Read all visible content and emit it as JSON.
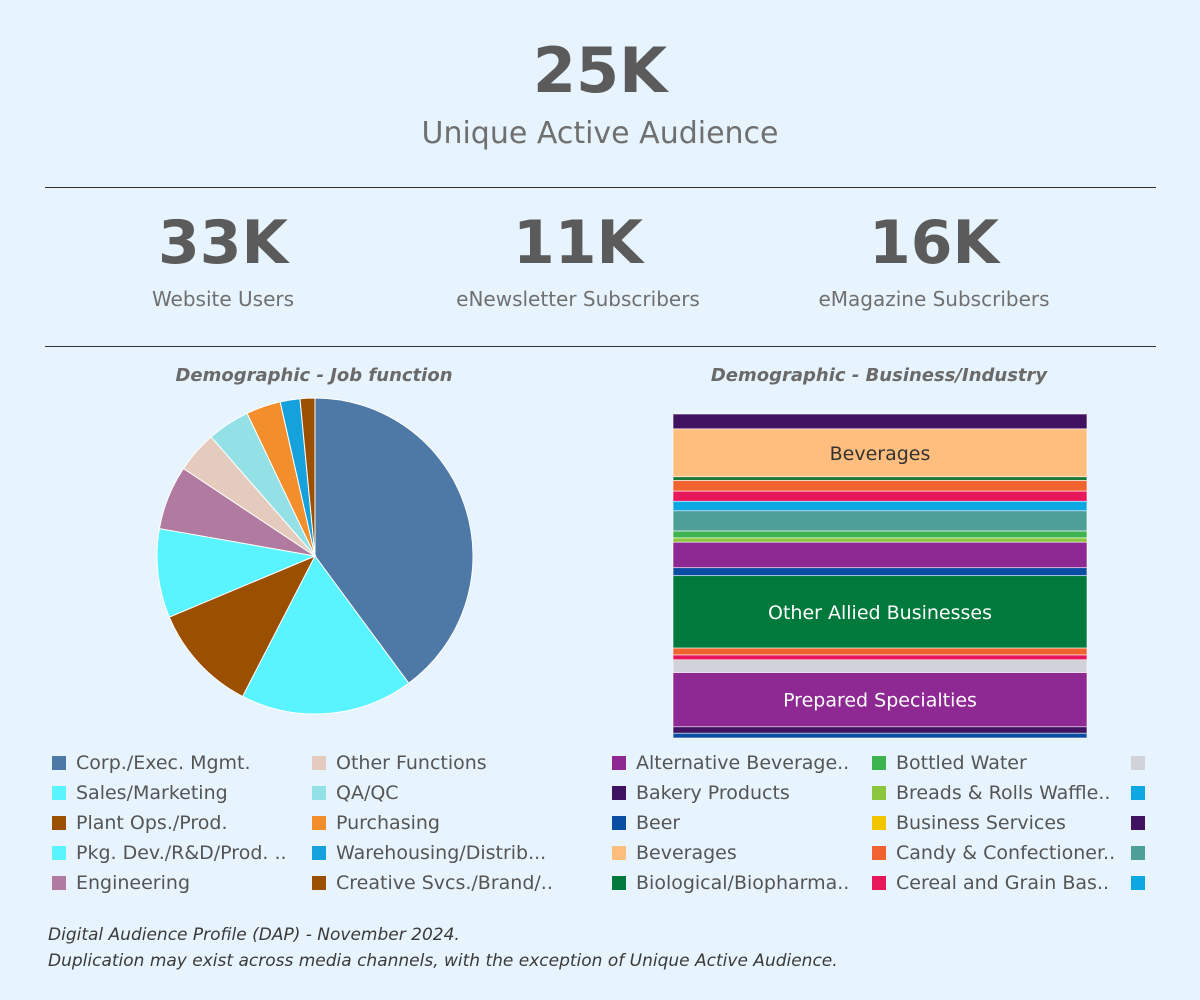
{
  "hero": {
    "value": "25K",
    "label": "Unique Active Audience"
  },
  "kpis": [
    {
      "value": "33K",
      "label": "Website Users"
    },
    {
      "value": "11K",
      "label": "eNewsletter Subscribers"
    },
    {
      "value": "16K",
      "label": "eMagazine Subscribers"
    }
  ],
  "footnote": {
    "line1": "Digital Audience Profile (DAP) - November 2024.",
    "line2": "Duplication may exist across media channels, with the exception of Unique Active Audience."
  },
  "chart_data": [
    {
      "type": "pie",
      "title": "Demographic - Job function",
      "slices": [
        {
          "label": "Corp./Exec. Mgmt.",
          "value": 39.5,
          "color": "#4e79a7"
        },
        {
          "label": "Sales/Marketing",
          "value": 17.5,
          "color": "#59f4ff"
        },
        {
          "label": "Plant Ops./Prod.",
          "value": 11.0,
          "color": "#9a5000"
        },
        {
          "label": "Pkg. Dev./R&D/Prod. ..",
          "value": 9.0,
          "color": "#59f4ff"
        },
        {
          "label": "Engineering",
          "value": 6.5,
          "color": "#b07aa1"
        },
        {
          "label": "Other Functions",
          "value": 4.2,
          "color": "#e4cbbd"
        },
        {
          "label": "QA/QC",
          "value": 4.3,
          "color": "#93e0e6"
        },
        {
          "label": "Purchasing",
          "value": 3.5,
          "color": "#f28e2b"
        },
        {
          "label": "Warehousing/Distrib...",
          "value": 2.0,
          "color": "#14a1dc"
        },
        {
          "label": "Creative Svcs./Brand/..",
          "value": 1.5,
          "color": "#9a5000"
        }
      ],
      "legend_placement": "bottom"
    },
    {
      "type": "stacked-bar",
      "title": "Demographic - Business/Industry",
      "segments": [
        {
          "label": "",
          "value": 1.4,
          "color": "#40125f"
        },
        {
          "label": "Beverages",
          "value": 4.5,
          "color": "#ffbe7d"
        },
        {
          "label": "",
          "value": 0.35,
          "color": "#1f7a3a"
        },
        {
          "label": "",
          "value": 1.0,
          "color": "#f0622e"
        },
        {
          "label": "",
          "value": 0.95,
          "color": "#e8165b"
        },
        {
          "label": "",
          "value": 0.9,
          "color": "#0da7e2"
        },
        {
          "label": "",
          "value": 1.9,
          "color": "#4e9f98"
        },
        {
          "label": "",
          "value": 0.65,
          "color": "#3cb34f"
        },
        {
          "label": "",
          "value": 0.4,
          "color": "#8cc63f"
        },
        {
          "label": "",
          "value": 2.4,
          "color": "#8e2893"
        },
        {
          "label": "",
          "value": 0.75,
          "color": "#0a4ea3"
        },
        {
          "label": "Other Allied Businesses",
          "value": 6.8,
          "color": "#00793c"
        },
        {
          "label": "",
          "value": 0.65,
          "color": "#f0622e"
        },
        {
          "label": "",
          "value": 0.45,
          "color": "#e8165b"
        },
        {
          "label": "",
          "value": 1.2,
          "color": "#d2d2da"
        },
        {
          "label": "Prepared Specialties",
          "value": 5.1,
          "color": "#8e2893"
        },
        {
          "label": "",
          "value": 0.6,
          "color": "#40125f"
        },
        {
          "label": "",
          "value": 0.45,
          "color": "#0a4ea3"
        }
      ],
      "legend": [
        {
          "label": "Alternative Beverage..",
          "color": "#8e2893"
        },
        {
          "label": "Bakery Products",
          "color": "#40125f"
        },
        {
          "label": "Beer",
          "color": "#0a4ea3"
        },
        {
          "label": "Beverages",
          "color": "#ffbe7d"
        },
        {
          "label": "Biological/Biopharma..",
          "color": "#00793c"
        },
        {
          "label": "Bottled Water",
          "color": "#3cb34f"
        },
        {
          "label": "Breads & Rolls Waffle..",
          "color": "#8cc63f"
        },
        {
          "label": "Business Services",
          "color": "#f2c500"
        },
        {
          "label": "Candy & Confectioner..",
          "color": "#f0622e"
        },
        {
          "label": "Cereal and Grain Bas..",
          "color": "#e8165b"
        },
        {
          "label": "",
          "color": "#d2d2da"
        },
        {
          "label": "",
          "color": "#0da7e2"
        },
        {
          "label": "",
          "color": "#40125f"
        },
        {
          "label": "",
          "color": "#4e9f98"
        },
        {
          "label": "",
          "color": "#0da7e2"
        }
      ],
      "legend_placement": "bottom"
    }
  ]
}
